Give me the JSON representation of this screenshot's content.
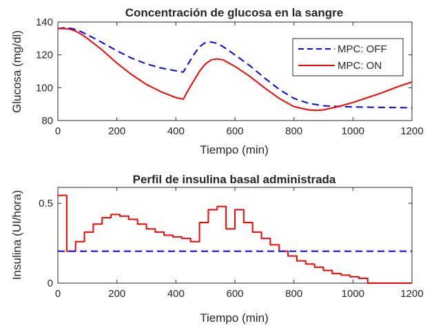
{
  "chart_data": [
    {
      "type": "line",
      "title": "Concentración de glucosa en la sangre",
      "xlabel": "Tiempo (min)",
      "ylabel": "Glucosa (mg/dl)",
      "xlim": [
        0,
        1200
      ],
      "ylim": [
        80,
        140
      ],
      "xticks": [
        0,
        200,
        400,
        600,
        800,
        1000,
        1200
      ],
      "yticks": [
        80,
        100,
        120,
        140
      ],
      "grid": false,
      "legend": "top-right",
      "series": [
        {
          "name": "MPC: OFF",
          "color": "#0000ff",
          "style": "dashed",
          "x": [
            0,
            20,
            40,
            60,
            80,
            100,
            150,
            200,
            250,
            300,
            350,
            400,
            425,
            440,
            460,
            480,
            500,
            520,
            540,
            560,
            600,
            650,
            700,
            750,
            800,
            850,
            900,
            950,
            1000,
            1100,
            1200
          ],
          "y": [
            136,
            136.5,
            136.3,
            135.5,
            134,
            132.3,
            127.5,
            122.5,
            118,
            114.5,
            112,
            110.3,
            109.5,
            114,
            120,
            125,
            127.5,
            127.8,
            127,
            125,
            120,
            113.5,
            106,
            99,
            93.5,
            90.5,
            89,
            88.6,
            88.3,
            88,
            87.8
          ]
        },
        {
          "name": "MPC: ON",
          "color": "#ff0000",
          "style": "solid",
          "x": [
            0,
            20,
            40,
            60,
            80,
            100,
            150,
            200,
            250,
            300,
            350,
            400,
            425,
            440,
            460,
            480,
            500,
            520,
            540,
            560,
            600,
            650,
            700,
            750,
            800,
            850,
            875,
            900,
            950,
            1000,
            1050,
            1100,
            1150,
            1200
          ],
          "y": [
            136,
            136,
            135.7,
            134.5,
            132.5,
            130,
            123,
            115,
            108,
            102,
            97.5,
            94,
            93,
            98,
            104,
            110,
            114.5,
            117,
            117.5,
            117,
            113,
            107,
            100,
            93.5,
            88.5,
            86.5,
            86.2,
            86.5,
            88.5,
            91,
            94,
            97,
            100.5,
            103.5
          ]
        }
      ]
    },
    {
      "type": "line",
      "title": "Perfil de insulina basal administrada",
      "xlabel": "Tiempo (min)",
      "ylabel": "Insulina (UI/hora)",
      "xlim": [
        0,
        1200
      ],
      "ylim": [
        0,
        0.6
      ],
      "xticks": [
        0,
        200,
        400,
        600,
        800,
        1000,
        1200
      ],
      "yticks": [
        0,
        0.5
      ],
      "grid": false,
      "series": [
        {
          "color": "#ff0000",
          "style": "stairs",
          "x": [
            0,
            30,
            60,
            90,
            120,
            150,
            180,
            210,
            240,
            270,
            300,
            330,
            360,
            390,
            420,
            450,
            480,
            510,
            540,
            570,
            600,
            630,
            660,
            690,
            720,
            750,
            780,
            810,
            840,
            870,
            900,
            930,
            960,
            990,
            1020,
            1050,
            1080,
            1110,
            1140,
            1170,
            1200
          ],
          "y": [
            0.55,
            0.2,
            0.26,
            0.32,
            0.37,
            0.41,
            0.43,
            0.42,
            0.4,
            0.37,
            0.34,
            0.32,
            0.3,
            0.29,
            0.28,
            0.26,
            0.38,
            0.46,
            0.48,
            0.34,
            0.46,
            0.38,
            0.32,
            0.28,
            0.24,
            0.2,
            0.17,
            0.14,
            0.12,
            0.1,
            0.08,
            0.06,
            0.05,
            0.04,
            0.03,
            0.0,
            0.0,
            0.0,
            0.0,
            0.0,
            0.0
          ]
        },
        {
          "color": "#0000ff",
          "style": "dashed",
          "x": [
            0,
            1200
          ],
          "y": [
            0.2,
            0.2
          ]
        }
      ]
    }
  ]
}
